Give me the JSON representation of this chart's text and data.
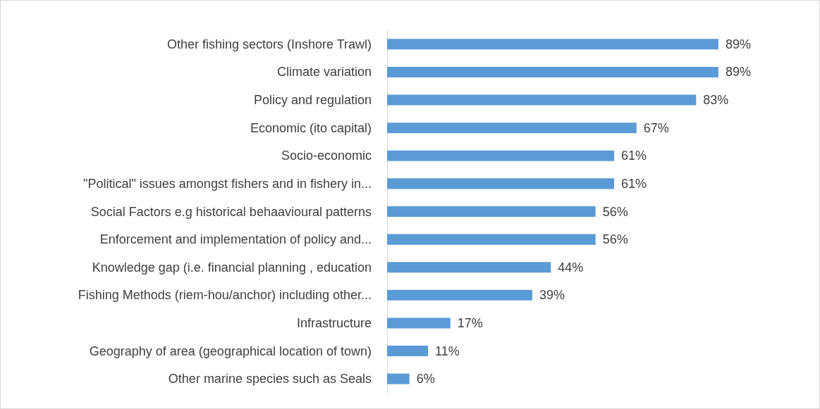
{
  "chart_data": {
    "type": "bar",
    "orientation": "horizontal",
    "categories": [
      "Other fishing sectors (Inshore Trawl)",
      "Climate variation",
      "Policy and regulation",
      "Economic (ito capital)",
      "Socio-economic",
      "\"Political\" issues amongst fishers and in fishery in...",
      "Social Factors e.g historical behaavioural patterns",
      "Enforcement and implementation of policy and...",
      "Knowledge gap (i.e. financial planning , education",
      "Fishing Methods (riem-hou/anchor) including other...",
      "Infrastructure",
      "Geography of area (geographical location of town)",
      "Other marine species such as Seals"
    ],
    "values": [
      89,
      89,
      83,
      67,
      61,
      61,
      56,
      56,
      44,
      39,
      17,
      11,
      6
    ],
    "value_labels": [
      "89%",
      "89%",
      "83%",
      "67%",
      "61%",
      "61%",
      "56%",
      "56%",
      "44%",
      "39%",
      "17%",
      "11%",
      "6%"
    ],
    "color": "#5b9bd5"
  }
}
